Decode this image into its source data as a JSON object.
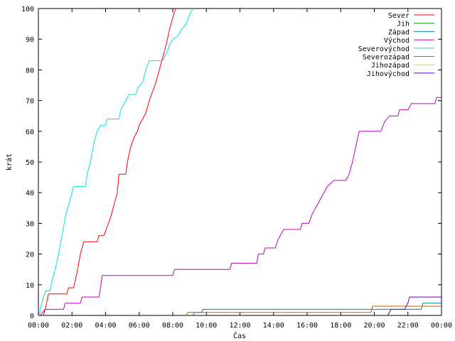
{
  "chart_data": {
    "type": "line",
    "xlabel": "Čas",
    "ylabel": "krát",
    "xlim": [
      0,
      24
    ],
    "ylim": [
      0,
      100
    ],
    "x_ticks": [
      {
        "v": 0,
        "label": "00:00"
      },
      {
        "v": 2,
        "label": "02:00"
      },
      {
        "v": 4,
        "label": "04:00"
      },
      {
        "v": 6,
        "label": "06:00"
      },
      {
        "v": 8,
        "label": "08:00"
      },
      {
        "v": 10,
        "label": "10:00"
      },
      {
        "v": 12,
        "label": "12:00"
      },
      {
        "v": 14,
        "label": "14:00"
      },
      {
        "v": 16,
        "label": "16:00"
      },
      {
        "v": 18,
        "label": "18:00"
      },
      {
        "v": 20,
        "label": "20:00"
      },
      {
        "v": 22,
        "label": "22:00"
      },
      {
        "v": 24,
        "label": "00:00"
      }
    ],
    "y_ticks": [
      0,
      10,
      20,
      30,
      40,
      50,
      60,
      70,
      80,
      90,
      100
    ],
    "legend_position": "top-right",
    "series": [
      {
        "name": "Sever",
        "color": "#ff0000",
        "points": [
          [
            0.3,
            0
          ],
          [
            0.4,
            2
          ],
          [
            0.6,
            7
          ],
          [
            1.7,
            7
          ],
          [
            1.8,
            9
          ],
          [
            2.1,
            9
          ],
          [
            2.3,
            14
          ],
          [
            2.5,
            20
          ],
          [
            2.7,
            24
          ],
          [
            3.5,
            24
          ],
          [
            3.6,
            26
          ],
          [
            3.9,
            26
          ],
          [
            4.1,
            29
          ],
          [
            4.3,
            32
          ],
          [
            4.5,
            36
          ],
          [
            4.7,
            40
          ],
          [
            4.8,
            46
          ],
          [
            5.2,
            46
          ],
          [
            5.3,
            50
          ],
          [
            5.5,
            55
          ],
          [
            5.7,
            58
          ],
          [
            5.9,
            60
          ],
          [
            6.0,
            62
          ],
          [
            6.2,
            64
          ],
          [
            6.4,
            66
          ],
          [
            6.6,
            70
          ],
          [
            6.8,
            73
          ],
          [
            7.0,
            76
          ],
          [
            7.2,
            80
          ],
          [
            7.4,
            84
          ],
          [
            7.6,
            88
          ],
          [
            7.8,
            93
          ],
          [
            8.0,
            97
          ],
          [
            8.1,
            99
          ],
          [
            8.2,
            100
          ]
        ]
      },
      {
        "name": "Jih",
        "color": "#00a000",
        "points": []
      },
      {
        "name": "Západ",
        "color": "#0080a0",
        "points": [
          [
            9.2,
            0
          ],
          [
            9.3,
            1
          ],
          [
            9.7,
            1
          ],
          [
            9.8,
            2
          ],
          [
            22.8,
            2
          ],
          [
            22.9,
            4
          ],
          [
            24,
            4
          ]
        ]
      },
      {
        "name": "Východ",
        "color": "#c000c0",
        "points": [
          [
            0.1,
            0
          ],
          [
            0.4,
            2
          ],
          [
            1.5,
            2
          ],
          [
            1.6,
            4
          ],
          [
            2.5,
            4
          ],
          [
            2.6,
            6
          ],
          [
            3.6,
            6
          ],
          [
            3.7,
            9
          ],
          [
            3.8,
            13
          ],
          [
            8.0,
            13
          ],
          [
            8.1,
            15
          ],
          [
            11.4,
            15
          ],
          [
            11.5,
            17
          ],
          [
            13.0,
            17
          ],
          [
            13.1,
            20
          ],
          [
            13.4,
            20
          ],
          [
            13.5,
            22
          ],
          [
            14.1,
            22
          ],
          [
            14.3,
            25
          ],
          [
            14.6,
            28
          ],
          [
            15.6,
            28
          ],
          [
            15.7,
            30
          ],
          [
            16.1,
            30
          ],
          [
            16.3,
            33
          ],
          [
            16.6,
            36
          ],
          [
            16.9,
            39
          ],
          [
            17.2,
            42
          ],
          [
            17.6,
            44
          ],
          [
            18.3,
            44
          ],
          [
            18.5,
            46
          ],
          [
            18.7,
            50
          ],
          [
            18.9,
            55
          ],
          [
            19.1,
            60
          ],
          [
            20.4,
            60
          ],
          [
            20.6,
            63
          ],
          [
            20.9,
            65
          ],
          [
            21.4,
            65
          ],
          [
            21.5,
            67
          ],
          [
            22.0,
            67
          ],
          [
            22.2,
            69
          ],
          [
            23.6,
            69
          ],
          [
            23.7,
            71
          ],
          [
            24,
            71
          ]
        ]
      },
      {
        "name": "Severovýchod",
        "color": "#00e0e0",
        "points": [
          [
            0.05,
            0
          ],
          [
            0.15,
            3
          ],
          [
            0.3,
            6
          ],
          [
            0.45,
            8
          ],
          [
            0.7,
            8
          ],
          [
            0.8,
            11
          ],
          [
            1.0,
            15
          ],
          [
            1.2,
            20
          ],
          [
            1.4,
            26
          ],
          [
            1.6,
            32
          ],
          [
            1.8,
            36
          ],
          [
            2.0,
            40
          ],
          [
            2.1,
            42
          ],
          [
            2.8,
            42
          ],
          [
            2.9,
            46
          ],
          [
            3.1,
            50
          ],
          [
            3.3,
            56
          ],
          [
            3.5,
            60
          ],
          [
            3.7,
            62
          ],
          [
            4.0,
            62
          ],
          [
            4.1,
            64
          ],
          [
            4.8,
            64
          ],
          [
            4.9,
            67
          ],
          [
            5.2,
            70
          ],
          [
            5.4,
            72
          ],
          [
            5.8,
            72
          ],
          [
            5.9,
            74
          ],
          [
            6.2,
            76
          ],
          [
            6.4,
            80
          ],
          [
            6.6,
            83
          ],
          [
            7.4,
            83
          ],
          [
            7.6,
            85
          ],
          [
            7.8,
            88
          ],
          [
            8.0,
            90
          ],
          [
            8.3,
            91
          ],
          [
            8.5,
            93
          ],
          [
            8.8,
            95
          ],
          [
            9.0,
            98
          ],
          [
            9.2,
            100
          ]
        ]
      },
      {
        "name": "Severozápad",
        "color": "#c06000",
        "points": [
          [
            8.8,
            0
          ],
          [
            8.9,
            1
          ],
          [
            19.8,
            1
          ],
          [
            19.9,
            3
          ],
          [
            24,
            3
          ]
        ]
      },
      {
        "name": "Jihozápad",
        "color": "#e0e000",
        "points": []
      },
      {
        "name": "Jihovýchod",
        "color": "#6000c0",
        "points": [
          [
            20.8,
            0
          ],
          [
            21.0,
            2
          ],
          [
            21.8,
            2
          ],
          [
            22.0,
            4
          ],
          [
            22.1,
            6
          ],
          [
            24,
            6
          ]
        ]
      }
    ]
  }
}
